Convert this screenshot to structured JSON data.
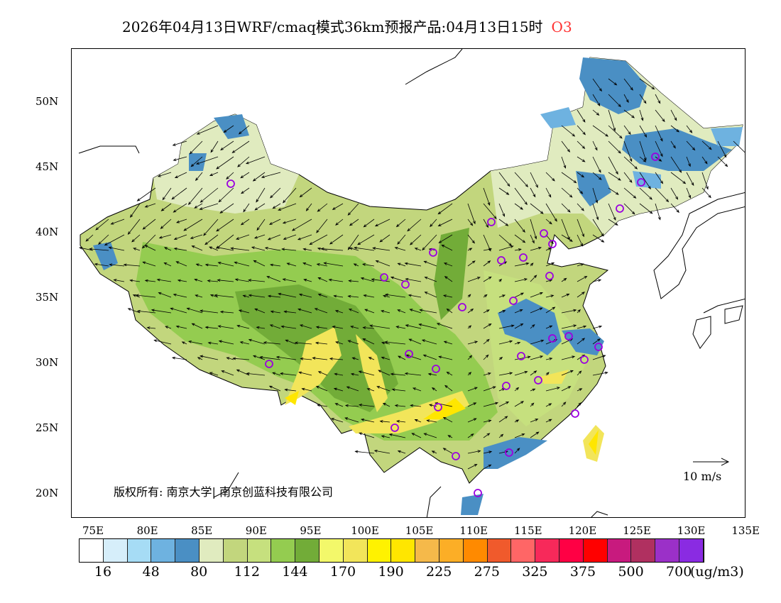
{
  "title": {
    "text": "2026年04月13日WRF/cmaq模式36km预报产品:04月13日15时",
    "species": "O3",
    "species_color": "#ff3030"
  },
  "lat_labels": [
    "50N",
    "45N",
    "40N",
    "35N",
    "30N",
    "25N",
    "20N"
  ],
  "lon_labels": [
    "75E",
    "80E",
    "85E",
    "90E",
    "95E",
    "100E",
    "105E",
    "110E",
    "115E",
    "120E",
    "125E",
    "130E",
    "135E"
  ],
  "colorbar": {
    "colors": [
      "#ffffff",
      "#d6eefa",
      "#a6dcf5",
      "#6eb2e0",
      "#4a8fc4",
      "#e0ebbf",
      "#c2d67d",
      "#c6e07e",
      "#94cc50",
      "#72ac38",
      "#f3f86a",
      "#f2e55a",
      "#fff200",
      "#ffe600",
      "#f5b94a",
      "#fcae26",
      "#ff8a00",
      "#f05a2c",
      "#ff6666",
      "#f7295a",
      "#ff0044",
      "#ff0000",
      "#c81a7e",
      "#b03060",
      "#9b30c8",
      "#8a2be2"
    ],
    "labels": [
      "16",
      "48",
      "80",
      "112",
      "144",
      "170",
      "190",
      "225",
      "275",
      "325",
      "375",
      "500",
      "700"
    ],
    "unit": "(ug/m3)"
  },
  "copyright": "版权所有: 南京大学| 南京创蓝科技有限公司",
  "wind_reference": "10  m/s"
}
